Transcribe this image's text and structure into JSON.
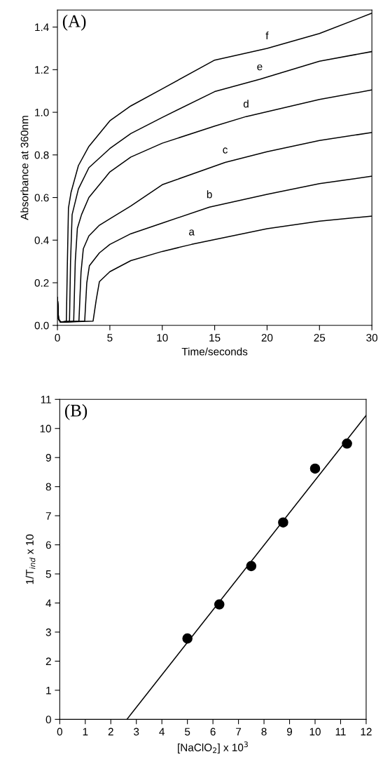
{
  "chart_data": [
    {
      "type": "line",
      "xlabel": "Time/seconds",
      "ylabel": "Absorbance at 360nm",
      "xlim": [
        0,
        30
      ],
      "ylim": [
        0,
        1.48
      ],
      "xticks": [
        0,
        5,
        10,
        15,
        20,
        25,
        30
      ],
      "yticks": [
        {
          "value": 0,
          "label": "0.0"
        },
        0.2,
        0.4,
        0.6,
        0.8,
        {
          "value": 1.0,
          "label": "1.0"
        },
        1.2,
        1.4
      ],
      "grid": false,
      "legend": false,
      "marker": "none",
      "line_style": "solid",
      "annotations": [
        "(A)",
        {
          "text": "f",
          "x": 20,
          "y": 1.3
        },
        {
          "text": "e",
          "x": 19.3,
          "y": 1.155
        },
        {
          "text": "d",
          "x": 18,
          "y": 0.98
        },
        {
          "text": "c",
          "x": 16,
          "y": 0.765
        },
        {
          "text": "b",
          "x": 14.5,
          "y": 0.555
        },
        {
          "text": "a",
          "x": 12.8,
          "y": 0.38
        }
      ],
      "series": [
        {
          "color": "#000000",
          "x": [
            0,
            0.1,
            0.3,
            0.85,
            0.95,
            1.05,
            1.3,
            2,
            3,
            5,
            7,
            10,
            15,
            20,
            25,
            30
          ],
          "values": [
            0.13,
            0.03,
            0.015,
            0.02,
            0.3,
            0.55,
            0.625,
            0.75,
            0.84,
            0.96,
            1.03,
            1.11,
            1.245,
            1.3,
            1.37,
            1.465
          ]
        },
        {
          "color": "#000000",
          "x": [
            0,
            0.1,
            0.3,
            1.15,
            1.25,
            1.4,
            2,
            3,
            5,
            7,
            10,
            15,
            19.3,
            25,
            30
          ],
          "values": [
            0.13,
            0.03,
            0.015,
            0.02,
            0.3,
            0.52,
            0.64,
            0.74,
            0.83,
            0.9,
            0.976,
            1.097,
            1.155,
            1.24,
            1.285
          ]
        },
        {
          "color": "#000000",
          "x": [
            0,
            0.1,
            0.3,
            1.55,
            1.7,
            1.9,
            2.3,
            3,
            5,
            7,
            10,
            15,
            18,
            25,
            30
          ],
          "values": [
            0.13,
            0.03,
            0.015,
            0.02,
            0.3,
            0.455,
            0.52,
            0.6,
            0.72,
            0.79,
            0.855,
            0.935,
            0.98,
            1.06,
            1.105
          ]
        },
        {
          "color": "#000000",
          "x": [
            0,
            0.1,
            0.3,
            2.05,
            2.25,
            2.47,
            3,
            4,
            5,
            7,
            10,
            16,
            20,
            25,
            30
          ],
          "values": [
            0.13,
            0.03,
            0.015,
            0.02,
            0.25,
            0.36,
            0.42,
            0.47,
            0.5,
            0.56,
            0.66,
            0.765,
            0.815,
            0.868,
            0.905
          ]
        },
        {
          "color": "#000000",
          "x": [
            0,
            0.1,
            0.3,
            2.6,
            2.8,
            3.05,
            4,
            5,
            7,
            10,
            14.5,
            20,
            25,
            30
          ],
          "values": [
            0.13,
            0.03,
            0.015,
            0.02,
            0.2,
            0.28,
            0.34,
            0.38,
            0.43,
            0.48,
            0.555,
            0.615,
            0.665,
            0.7
          ]
        },
        {
          "color": "#000000",
          "x": [
            0,
            0.1,
            0.3,
            3.4,
            3.7,
            4.0,
            5,
            7,
            10,
            12.8,
            20,
            25,
            30
          ],
          "values": [
            0.13,
            0.03,
            0.015,
            0.02,
            0.12,
            0.205,
            0.252,
            0.304,
            0.347,
            0.38,
            0.454,
            0.489,
            0.513
          ]
        }
      ]
    },
    {
      "type": "scatter",
      "xlabel": "[NaClO$_{2}$] x 10$^{3}$",
      "ylabel": "1/T$_{ind}$ x 10",
      "xlim": [
        0,
        12
      ],
      "ylim": [
        0,
        11
      ],
      "xticks": [
        0,
        1,
        2,
        3,
        4,
        5,
        6,
        7,
        8,
        9,
        10,
        11,
        12
      ],
      "yticks": [
        0,
        1,
        2,
        3,
        4,
        5,
        6,
        7,
        8,
        9,
        10,
        11
      ],
      "grid": false,
      "legend": false,
      "marker": "circle",
      "annotations": [
        "(B)"
      ],
      "series": [
        {
          "color": "#000000",
          "x": [
            5,
            6.25,
            7.5,
            8.75,
            10,
            11.25
          ],
          "values": [
            2.78,
            3.95,
            5.27,
            6.77,
            8.62,
            9.48
          ]
        },
        {
          "type": "line",
          "color": "#000000",
          "marker": "none",
          "x": [
            2.63,
            12
          ],
          "values": [
            0,
            10.45
          ]
        }
      ]
    }
  ]
}
